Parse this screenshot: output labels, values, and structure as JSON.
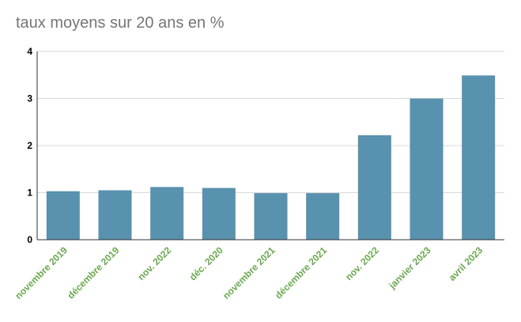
{
  "chart_data": {
    "type": "bar",
    "title": "taux moyens sur 20 ans en %",
    "categories": [
      "novembre 2019",
      "décembre 2019",
      "nov. 2022",
      "déc. 2020",
      "novembre 2021",
      "décembre 2021",
      "nov. 2022",
      "janvier 2023",
      "avril 2023"
    ],
    "values": [
      1.03,
      1.05,
      1.12,
      1.1,
      0.99,
      0.99,
      2.22,
      3.0,
      3.49
    ],
    "ylim": [
      0,
      4
    ],
    "yticks": [
      "0",
      "1",
      "2",
      "3",
      "4"
    ],
    "grid": true,
    "legend": "none",
    "bar_color": "#5892ae",
    "tick_label_color": "#6aa84f",
    "grid_color": "#d9d9d9"
  }
}
